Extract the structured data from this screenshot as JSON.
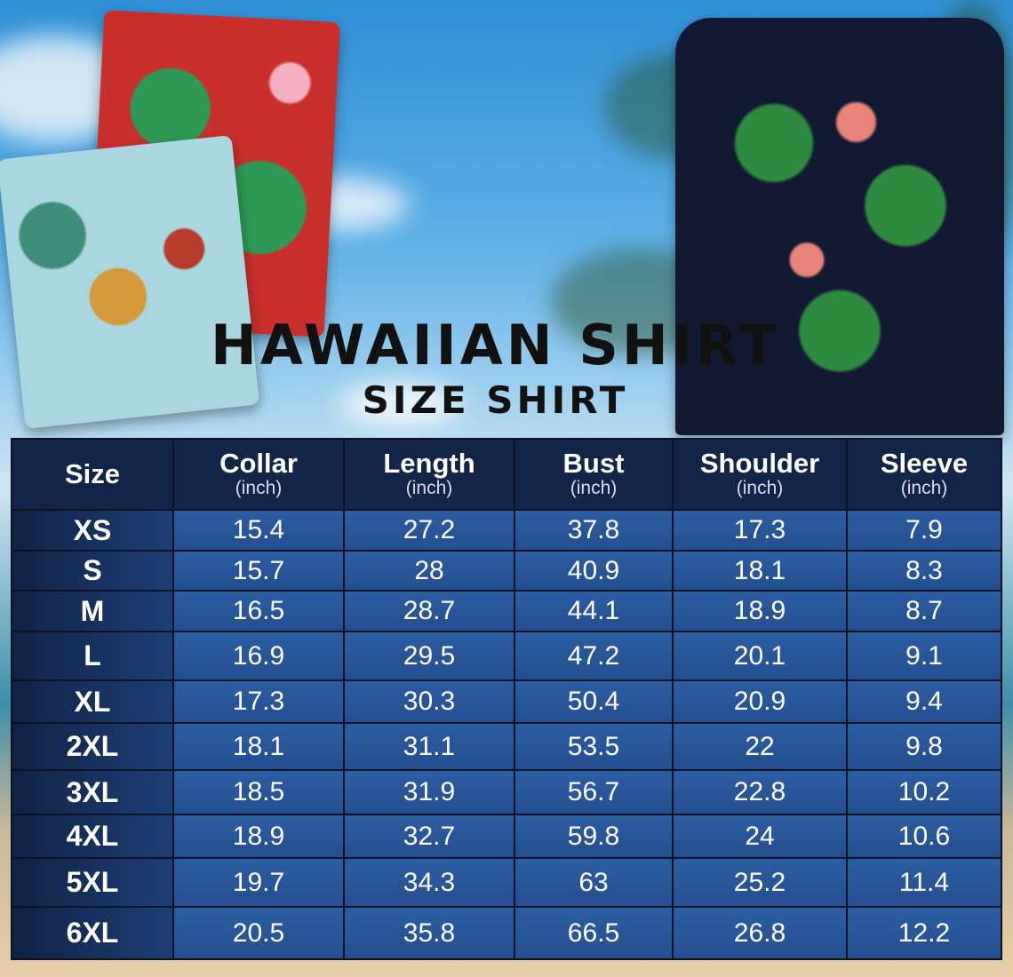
{
  "title": "HAWAIIAN SHIRT",
  "subtitle": "SIZE SHIRT",
  "colors": {
    "header_bg": "#122448",
    "cell_bg": "#2c5da2",
    "size_col_bg": "#0f2244",
    "title": "#111111"
  },
  "table": {
    "columns": [
      {
        "label": "Size",
        "unit": ""
      },
      {
        "label": "Collar",
        "unit": "(inch)"
      },
      {
        "label": "Length",
        "unit": "(inch)"
      },
      {
        "label": "Bust",
        "unit": "(inch)"
      },
      {
        "label": "Shoulder",
        "unit": "(inch)"
      },
      {
        "label": "Sleeve",
        "unit": "(inch)"
      }
    ],
    "rows": [
      [
        "XS",
        "15.4",
        "27.2",
        "37.8",
        "17.3",
        "7.9"
      ],
      [
        "S",
        "15.7",
        "28",
        "40.9",
        "18.1",
        "8.3"
      ],
      [
        "M",
        "16.5",
        "28.7",
        "44.1",
        "18.9",
        "8.7"
      ],
      [
        "L",
        "16.9",
        "29.5",
        "47.2",
        "20.1",
        "9.1"
      ],
      [
        "XL",
        "17.3",
        "30.3",
        "50.4",
        "20.9",
        "9.4"
      ],
      [
        "2XL",
        "18.1",
        "31.1",
        "53.5",
        "22",
        "9.8"
      ],
      [
        "3XL",
        "18.5",
        "31.9",
        "56.7",
        "22.8",
        "10.2"
      ],
      [
        "4XL",
        "18.9",
        "32.7",
        "59.8",
        "24",
        "10.6"
      ],
      [
        "5XL",
        "19.7",
        "34.3",
        "63",
        "25.2",
        "11.4"
      ],
      [
        "6XL",
        "20.5",
        "35.8",
        "66.5",
        "26.8",
        "12.2"
      ]
    ]
  }
}
